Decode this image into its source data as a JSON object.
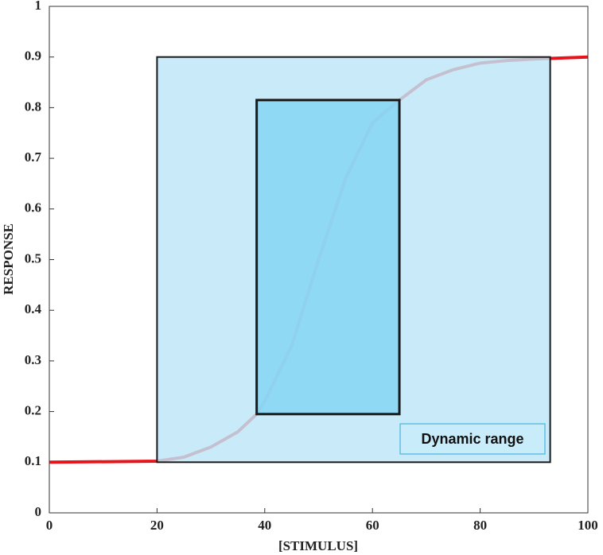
{
  "chart_data": {
    "type": "line",
    "xlabel": "[STIMULUS]",
    "ylabel": "RESPONSE",
    "xlim": [
      0,
      100
    ],
    "xticks": [
      0,
      20,
      40,
      60,
      80,
      100
    ],
    "ylim": [
      0,
      1
    ],
    "yticks": [
      0,
      0.1,
      0.2,
      0.3,
      0.4,
      0.5,
      0.6,
      0.7,
      0.8,
      0.9,
      1
    ],
    "series": [
      {
        "color": "#e8141c",
        "x": [
          0,
          20,
          25,
          30,
          35,
          38.5,
          40,
          45,
          50,
          55,
          60,
          65,
          70,
          75,
          80,
          85,
          90,
          100
        ],
        "values": [
          0.1,
          0.102,
          0.11,
          0.13,
          0.16,
          0.195,
          0.22,
          0.33,
          0.5,
          0.66,
          0.77,
          0.815,
          0.855,
          0.875,
          0.888,
          0.893,
          0.896,
          0.9
        ]
      }
    ],
    "regions": [
      {
        "x": [
          20,
          93
        ],
        "y": [
          0.1,
          0.9
        ],
        "color": "#bde6f8"
      },
      {
        "x": [
          38.5,
          65
        ],
        "y": [
          0.195,
          0.815
        ],
        "color": "#82d4f4"
      }
    ],
    "annotation": "Dynamic range"
  }
}
